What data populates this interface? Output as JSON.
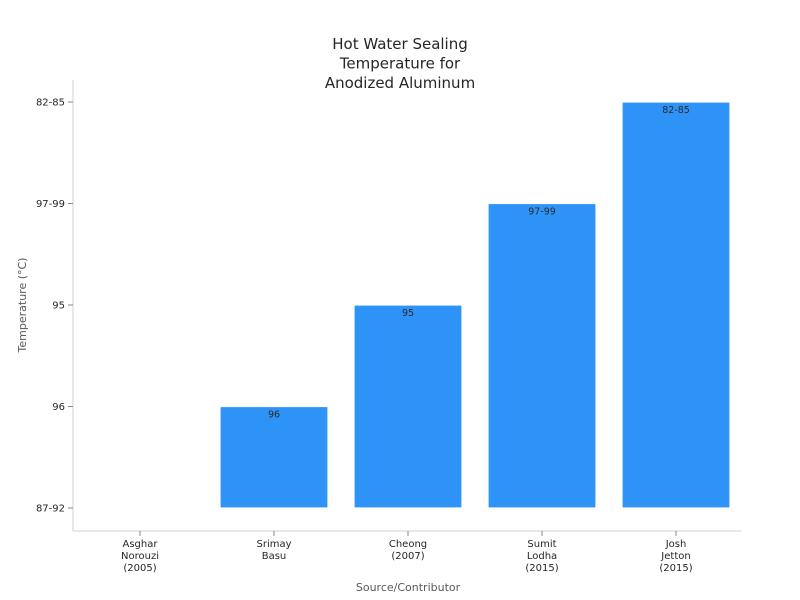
{
  "chart_data": {
    "type": "bar",
    "title": [
      "Hot Water Sealing",
      "Temperature for",
      "Anodized Aluminum"
    ],
    "xlabel": "Source/Contributor",
    "ylabel": "Temperature (°C)",
    "y_categories": [
      "87-92",
      "96",
      "95",
      "97-99",
      "82-85"
    ],
    "categories": [
      [
        "Asghar",
        "Norouzi",
        "(2005)"
      ],
      [
        "Srimay",
        "Basu"
      ],
      [
        "Cheong",
        "(2007)"
      ],
      [
        "Sumit",
        "Lodha",
        "(2015)"
      ],
      [
        "Josh",
        "Jetton",
        "(2015)"
      ]
    ],
    "values": [
      "87-92",
      "96",
      "95",
      "97-99",
      "82-85"
    ],
    "data_labels": [
      "",
      "96",
      "95",
      "97-99",
      "82-85"
    ],
    "grid": false,
    "legend": "none",
    "colors": {
      "bar": "#2e93f7"
    }
  }
}
